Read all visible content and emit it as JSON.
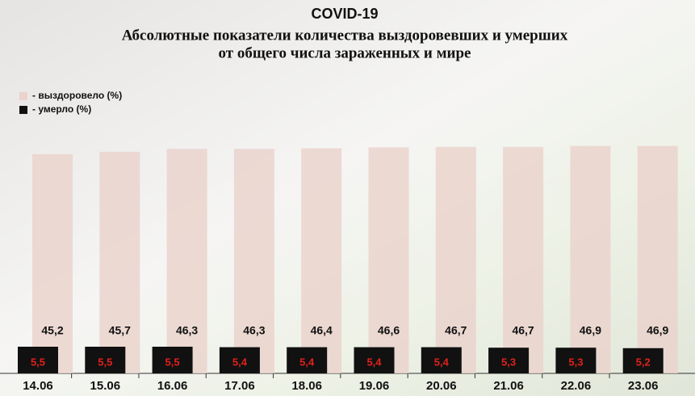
{
  "chart_data": {
    "type": "bar",
    "title": "COVID-19",
    "subtitle": [
      "Абсолютные показатели количества выздоровевших и умерших",
      "от общего числа зараженных  и мире"
    ],
    "categories": [
      "14.06",
      "15.06",
      "16.06",
      "17.06",
      "18.06",
      "19.06",
      "20.06",
      "21.06",
      "22.06",
      "23.06"
    ],
    "series": [
      {
        "name": "- выздоровело (%)",
        "color": "#ead3cd",
        "values": [
          45.2,
          45.7,
          46.3,
          46.3,
          46.4,
          46.6,
          46.7,
          46.7,
          46.9,
          46.9
        ],
        "value_labels": [
          "45,2",
          "45,7",
          "46,3",
          "46,3",
          "46,4",
          "46,6",
          "46,7",
          "46,7",
          "46,9",
          "46,9"
        ]
      },
      {
        "name": "- умерло (%)",
        "color": "#111111",
        "label_color": "#e3211c",
        "values": [
          5.5,
          5.5,
          5.5,
          5.4,
          5.4,
          5.4,
          5.4,
          5.3,
          5.3,
          5.2
        ],
        "value_labels": [
          "5,5",
          "5,5",
          "5,5",
          "5,4",
          "5,4",
          "5,4",
          "5,4",
          "5,3",
          "5,3",
          "5,2"
        ]
      }
    ]
  }
}
